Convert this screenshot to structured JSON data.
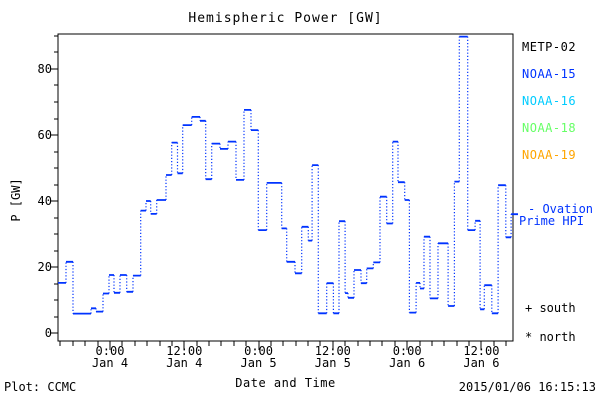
{
  "header": {
    "title": "Hemispheric Power [GW]"
  },
  "legend": {
    "items": [
      {
        "label": "METP-02",
        "color": "#000000"
      },
      {
        "label": "NOAA-15",
        "color": "#0033ff"
      },
      {
        "label": "NOAA-16",
        "color": "#00ccff"
      },
      {
        "label": "NOAA-18",
        "color": "#66ff66"
      },
      {
        "label": "NOAA-19",
        "color": "#ffa500"
      }
    ]
  },
  "annotations": {
    "ovation_line1": "- Ovation",
    "ovation_line2": "Prime HPI",
    "ovation_color": "#0033ff",
    "south_marker": "+ south",
    "north_marker": "* north"
  },
  "footer": {
    "plot_credit": "Plot: CCMC",
    "timestamp": "2015/01/06 16:15:13"
  },
  "chart_data": {
    "type": "line",
    "subtype": "step-post-dotted-risers",
    "title": "Hemispheric Power [GW]",
    "xlabel": "Date and Time",
    "ylabel": "P [GW]",
    "x_unit": "hours since 2015-01-03 00:00",
    "xlim": [
      15.6,
      89.1
    ],
    "ylim": [
      -2.4,
      90.6
    ],
    "grid": false,
    "y_major_ticks": [
      0,
      20,
      40,
      60,
      80
    ],
    "y_minor_step": 5,
    "x_minor_step_hours": 2,
    "x_major_ticks": [
      {
        "t": 24,
        "time": "0:00",
        "date": "Jan 4"
      },
      {
        "t": 36,
        "time": "12:00",
        "date": "Jan 4"
      },
      {
        "t": 48,
        "time": "0:00",
        "date": "Jan 5"
      },
      {
        "t": 60,
        "time": "12:00",
        "date": "Jan 5"
      },
      {
        "t": 72,
        "time": "0:00",
        "date": "Jan 6"
      },
      {
        "t": 84,
        "time": "12:00",
        "date": "Jan 6"
      }
    ],
    "series": [
      {
        "name": "Ovation Prime HPI",
        "color": "#0033ff",
        "points": [
          [
            15.6,
            15.2
          ],
          [
            16.89,
            21.6
          ],
          [
            18.02,
            5.9
          ],
          [
            20.93,
            7.5
          ],
          [
            21.74,
            6.5
          ],
          [
            22.87,
            12.0
          ],
          [
            23.84,
            17.6
          ],
          [
            24.65,
            12.2
          ],
          [
            25.62,
            17.6
          ],
          [
            26.7,
            12.5
          ],
          [
            27.72,
            17.4
          ],
          [
            28.96,
            37.1
          ],
          [
            29.82,
            40.0
          ],
          [
            30.58,
            36.1
          ],
          [
            31.55,
            40.3
          ],
          [
            33.05,
            47.9
          ],
          [
            33.97,
            57.7
          ],
          [
            34.91,
            48.4
          ],
          [
            35.75,
            63.0
          ],
          [
            37.2,
            65.5
          ],
          [
            38.54,
            64.3
          ],
          [
            39.46,
            46.6
          ],
          [
            40.43,
            57.4
          ],
          [
            41.77,
            55.8
          ],
          [
            43.06,
            58.0
          ],
          [
            44.36,
            46.4
          ],
          [
            45.65,
            67.6
          ],
          [
            46.78,
            61.5
          ],
          [
            47.96,
            31.2
          ],
          [
            49.32,
            45.5
          ],
          [
            51.74,
            31.7
          ],
          [
            52.55,
            21.6
          ],
          [
            53.89,
            18.1
          ],
          [
            54.97,
            32.2
          ],
          [
            56.04,
            28.0
          ],
          [
            56.64,
            50.9
          ],
          [
            57.65,
            6.0
          ],
          [
            59.01,
            15.1
          ],
          [
            60.08,
            6.0
          ],
          [
            61.0,
            33.9
          ],
          [
            61.97,
            12.1
          ],
          [
            62.45,
            10.7
          ],
          [
            63.42,
            19.1
          ],
          [
            64.55,
            15.1
          ],
          [
            65.47,
            19.6
          ],
          [
            66.54,
            21.4
          ],
          [
            67.62,
            41.3
          ],
          [
            68.7,
            33.2
          ],
          [
            69.67,
            58.0
          ],
          [
            70.53,
            45.7
          ],
          [
            71.61,
            40.3
          ],
          [
            72.36,
            6.2
          ],
          [
            73.44,
            15.2
          ],
          [
            74.08,
            13.5
          ],
          [
            74.73,
            29.2
          ],
          [
            75.7,
            10.5
          ],
          [
            76.99,
            27.2
          ],
          [
            78.61,
            8.2
          ],
          [
            79.63,
            45.9
          ],
          [
            80.43,
            89.8
          ],
          [
            81.79,
            31.2
          ],
          [
            82.97,
            34.0
          ],
          [
            83.78,
            7.2
          ],
          [
            84.47,
            14.5
          ],
          [
            85.67,
            6.0
          ],
          [
            86.69,
            44.8
          ],
          [
            87.93,
            29.0
          ],
          [
            88.79,
            36.0
          ]
        ]
      }
    ]
  }
}
